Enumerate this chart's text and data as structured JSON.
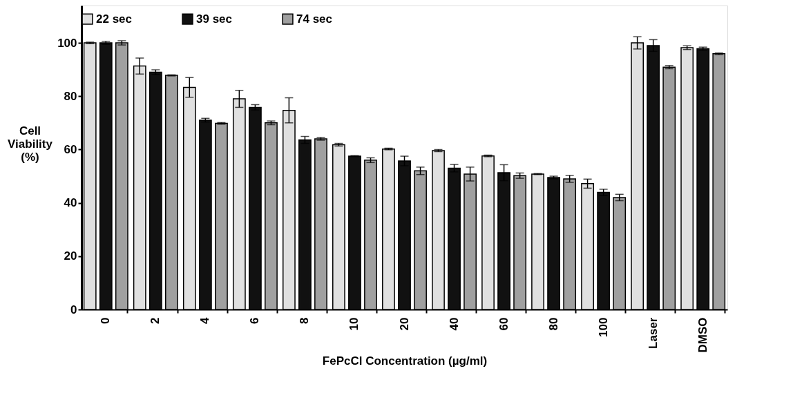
{
  "chart_data": {
    "type": "bar",
    "xlabel": "FePcCl Concentration (µg/ml)",
    "ylabel": "Cell Viability (%)",
    "categories": [
      "0",
      "2",
      "4",
      "6",
      "8",
      "10",
      "20",
      "40",
      "60",
      "80",
      "100",
      "Laser",
      "DMSO"
    ],
    "series": [
      {
        "name": "22 sec",
        "color": "#e0e0e0",
        "values": [
          100,
          91.3,
          83.3,
          79,
          74.7,
          61.8,
          60.2,
          59.6,
          57.6,
          50.8,
          47.2,
          100,
          98.2
        ],
        "errors": [
          0.3,
          3,
          3.7,
          3.2,
          4.7,
          0.5,
          0.3,
          0.4,
          0.3,
          0.2,
          1.7,
          2.3,
          0.7
        ]
      },
      {
        "name": "39 sec",
        "color": "#111111",
        "values": [
          100,
          89,
          71,
          75.8,
          63.6,
          57.5,
          55.7,
          53,
          51.3,
          49.5,
          43.9,
          99,
          97.8
        ],
        "errors": [
          0.6,
          0.9,
          0.7,
          1,
          1.3,
          0.2,
          1.8,
          1.4,
          3,
          0.5,
          1.2,
          2.2,
          0.6
        ]
      },
      {
        "name": "74 sec",
        "color": "#a0a0a0",
        "values": [
          100,
          87.8,
          69.8,
          70,
          64,
          56,
          52,
          50.8,
          50.2,
          49,
          42,
          90.9,
          95.9
        ],
        "errors": [
          0.8,
          0.2,
          0.3,
          0.7,
          0.5,
          0.9,
          1.4,
          2.6,
          1,
          1.3,
          1.2,
          0.6,
          0.3
        ]
      }
    ],
    "ylim": [
      0,
      114
    ],
    "yticks": [
      0,
      20,
      40,
      60,
      80,
      100
    ],
    "grid": false,
    "legend": "top"
  }
}
